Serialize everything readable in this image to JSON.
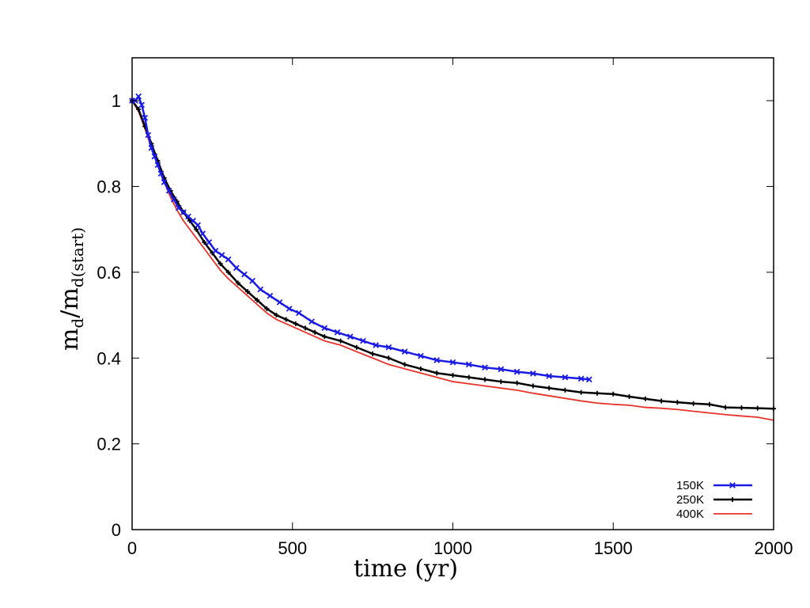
{
  "chart_data": {
    "type": "line",
    "xlabel": "time (yr)",
    "ylabel_main": "m",
    "ylabel_sub": "d",
    "ylabel_sep": "/m",
    "ylabel_sub2": "d(start)",
    "xlim": [
      0,
      2000
    ],
    "ylim": [
      0,
      1.1
    ],
    "x_ticks": [
      "0",
      "500",
      "1000",
      "1500",
      "2000"
    ],
    "y_ticks": [
      "0",
      "0.2",
      "0.4",
      "0.6",
      "0.8",
      "1"
    ],
    "legend_position": "bottom-right",
    "grid": false,
    "series": [
      {
        "name": "150K",
        "color": "#1a1ae6",
        "marker": "x",
        "x": [
          0,
          10,
          20,
          30,
          40,
          50,
          60,
          70,
          80,
          90,
          100,
          115,
          130,
          145,
          160,
          175,
          190,
          205,
          220,
          240,
          260,
          280,
          300,
          325,
          350,
          375,
          400,
          430,
          460,
          490,
          520,
          560,
          600,
          640,
          680,
          720,
          760,
          800,
          850,
          900,
          950,
          1000,
          1050,
          1100,
          1150,
          1200,
          1250,
          1300,
          1350,
          1400,
          1425
        ],
        "y": [
          1.0,
          1.0,
          1.01,
          0.99,
          0.96,
          0.92,
          0.89,
          0.87,
          0.85,
          0.83,
          0.81,
          0.79,
          0.77,
          0.75,
          0.74,
          0.73,
          0.72,
          0.71,
          0.69,
          0.67,
          0.65,
          0.64,
          0.63,
          0.61,
          0.595,
          0.58,
          0.56,
          0.545,
          0.53,
          0.515,
          0.505,
          0.485,
          0.47,
          0.46,
          0.45,
          0.44,
          0.43,
          0.425,
          0.415,
          0.405,
          0.395,
          0.39,
          0.385,
          0.378,
          0.374,
          0.368,
          0.364,
          0.358,
          0.355,
          0.352,
          0.35
        ]
      },
      {
        "name": "250K",
        "color": "#000000",
        "marker": "+",
        "x": [
          0,
          20,
          40,
          60,
          80,
          100,
          120,
          140,
          160,
          180,
          200,
          225,
          250,
          275,
          300,
          330,
          360,
          390,
          420,
          450,
          480,
          510,
          540,
          570,
          600,
          650,
          700,
          750,
          800,
          850,
          900,
          950,
          1000,
          1050,
          1100,
          1150,
          1200,
          1250,
          1300,
          1350,
          1400,
          1450,
          1500,
          1550,
          1600,
          1650,
          1700,
          1750,
          1800,
          1850,
          1900,
          1950,
          2000
        ],
        "y": [
          1.0,
          0.98,
          0.94,
          0.9,
          0.86,
          0.82,
          0.79,
          0.765,
          0.74,
          0.72,
          0.7,
          0.67,
          0.645,
          0.62,
          0.6,
          0.575,
          0.555,
          0.535,
          0.515,
          0.5,
          0.49,
          0.48,
          0.47,
          0.46,
          0.45,
          0.44,
          0.425,
          0.41,
          0.4,
          0.385,
          0.375,
          0.365,
          0.36,
          0.355,
          0.35,
          0.345,
          0.342,
          0.335,
          0.33,
          0.325,
          0.32,
          0.318,
          0.316,
          0.31,
          0.305,
          0.3,
          0.297,
          0.294,
          0.292,
          0.285,
          0.284,
          0.283,
          0.282
        ]
      },
      {
        "name": "400K",
        "color": "#e8322a",
        "marker": "none",
        "x": [
          0,
          20,
          40,
          60,
          80,
          100,
          120,
          140,
          160,
          180,
          200,
          225,
          250,
          275,
          300,
          330,
          360,
          390,
          420,
          450,
          480,
          510,
          540,
          570,
          600,
          650,
          700,
          750,
          800,
          850,
          900,
          950,
          1000,
          1050,
          1100,
          1150,
          1200,
          1250,
          1300,
          1350,
          1400,
          1450,
          1500,
          1550,
          1600,
          1650,
          1700,
          1750,
          1800,
          1850,
          1900,
          1950,
          2000
        ],
        "y": [
          1.0,
          0.975,
          0.935,
          0.89,
          0.85,
          0.81,
          0.775,
          0.745,
          0.72,
          0.7,
          0.68,
          0.655,
          0.63,
          0.605,
          0.585,
          0.565,
          0.545,
          0.525,
          0.505,
          0.49,
          0.48,
          0.47,
          0.46,
          0.45,
          0.44,
          0.43,
          0.415,
          0.4,
          0.385,
          0.375,
          0.365,
          0.355,
          0.345,
          0.34,
          0.335,
          0.33,
          0.325,
          0.318,
          0.312,
          0.306,
          0.3,
          0.295,
          0.292,
          0.29,
          0.285,
          0.283,
          0.28,
          0.276,
          0.272,
          0.268,
          0.265,
          0.262,
          0.255
        ]
      }
    ]
  }
}
